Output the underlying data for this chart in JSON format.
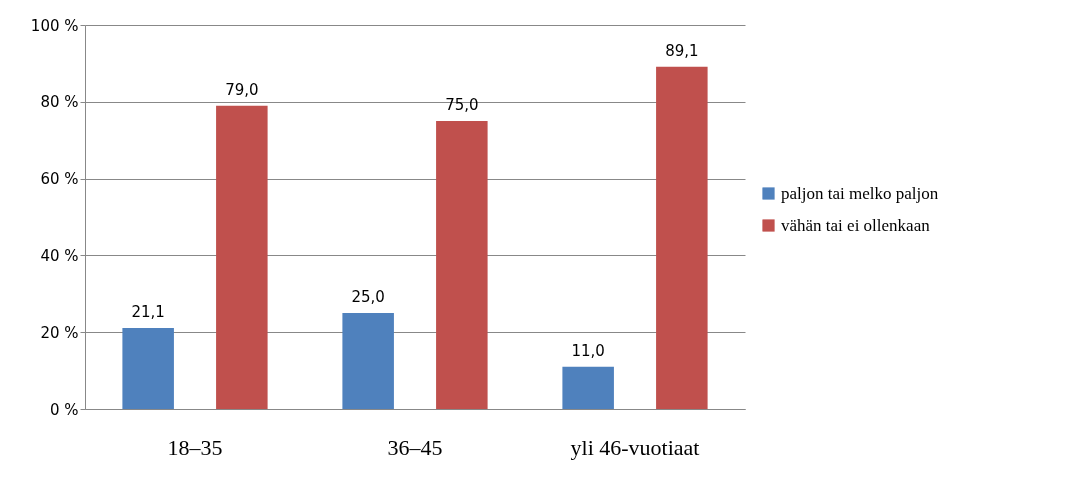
{
  "chart_data": {
    "type": "bar",
    "categories": [
      "18–35",
      "36–45",
      "yli 46-vuotiaat"
    ],
    "series": [
      {
        "name": "paljon tai melko paljon",
        "color": "#4f81bd",
        "values": [
          21.1,
          25.0,
          11.0
        ],
        "value_labels": [
          "21,1",
          "25,0",
          "11,0"
        ]
      },
      {
        "name": "vähän tai ei ollenkaan",
        "color": "#c0504d",
        "values": [
          79.0,
          75.0,
          89.1
        ],
        "value_labels": [
          "79,0",
          "75,0",
          "89,1"
        ]
      }
    ],
    "ylim": [
      0,
      100
    ],
    "yticks": [
      {
        "value": 0,
        "label": "0 %"
      },
      {
        "value": 20,
        "label": "20 %"
      },
      {
        "value": 40,
        "label": "40 %"
      },
      {
        "value": 60,
        "label": "60 %"
      },
      {
        "value": 80,
        "label": "80 %"
      },
      {
        "value": 100,
        "label": "100 %"
      }
    ],
    "grid": "y",
    "legend": "right"
  }
}
